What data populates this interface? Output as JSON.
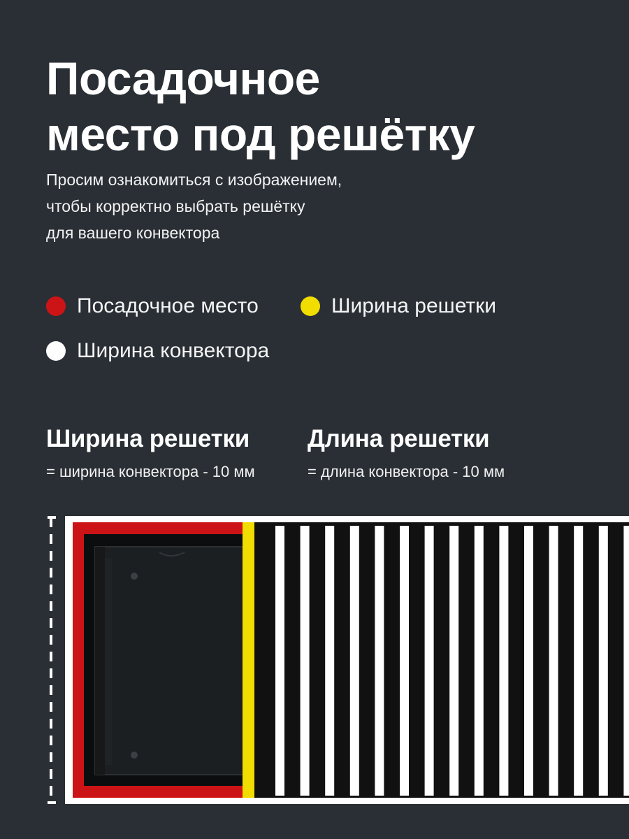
{
  "header": {
    "title_line1": "Посадочное",
    "title_line2": "место под решётку",
    "subtitle_line1": "Просим ознакомиться с изображением,",
    "subtitle_line2": "чтобы корректно выбрать решётку",
    "subtitle_line3": "для вашего конвектора"
  },
  "legend": [
    {
      "label": "Посадочное место",
      "color": "#cc1417"
    },
    {
      "label": "Ширина решетки",
      "color": "#f1dd00"
    },
    {
      "label": "Ширина конвектора",
      "color": "#ffffff"
    }
  ],
  "formulas": [
    {
      "title": "Ширина решетки",
      "text": "= ширина конвектора - 10 мм"
    },
    {
      "title": "Длина решетки",
      "text": "= длина конвектора - 10 мм"
    }
  ],
  "colors": {
    "background": "#2a2f35",
    "seat_red": "#cc1417",
    "grille_yellow": "#f1dd00",
    "convector_white": "#ffffff",
    "grille_slats": "#ffffff",
    "grille_gaps": "#111111"
  }
}
